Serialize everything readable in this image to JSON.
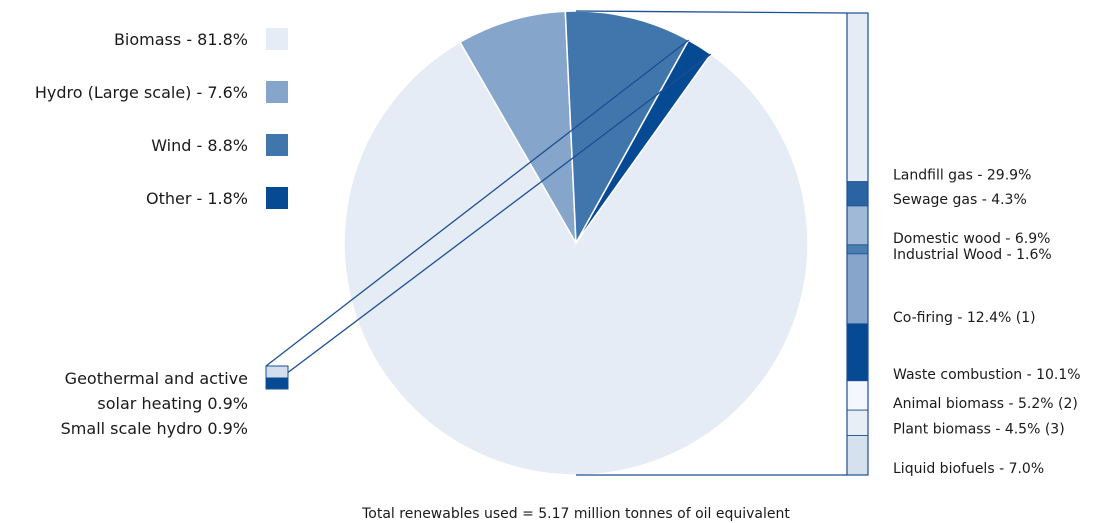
{
  "chart_data": {
    "type": "pie",
    "title": "",
    "footnote": "Total renewables used = 5.17 million tonnes of oil equivalent",
    "colors": {
      "biomass": "#e6ecf5",
      "hydro": "#85a6ca",
      "wind": "#4076ac",
      "other": "#064a94",
      "outline": "#1b4f94"
    },
    "slices": [
      {
        "label": "Biomass - 81.8%",
        "value": 81.8,
        "color": "#e6ecf5"
      },
      {
        "label": "Hydro (Large scale) - 7.6%",
        "value": 7.6,
        "color": "#85a6ca"
      },
      {
        "label": "Wind - 8.8%",
        "value": 8.8,
        "color": "#4076ac"
      },
      {
        "label": "Other - 1.8%",
        "value": 1.8,
        "color": "#064a94"
      }
    ],
    "other_breakdown": {
      "label_lines": [
        "Geothermal and active",
        "solar heating 0.9%",
        "Small scale hydro 0.9%"
      ],
      "items": [
        {
          "name": "Geothermal and active solar heating",
          "value": 0.9,
          "color": "#d3deed"
        },
        {
          "name": "Small scale hydro",
          "value": 0.9,
          "color": "#064a94"
        }
      ]
    },
    "biomass_breakdown": {
      "items": [
        {
          "label": "Landfill gas - 29.9%",
          "value": 29.9,
          "color": "#e6ecf5"
        },
        {
          "label": "Sewage gas - 4.3%",
          "value": 4.3,
          "color": "#2b64a3"
        },
        {
          "label": "Domestic wood - 6.9%",
          "value": 6.9,
          "color": "#9fb9d6"
        },
        {
          "label": "Industrial Wood - 1.6%",
          "value": 1.6,
          "color": "#4a7db2"
        },
        {
          "label": "Co-firing - 12.4% (1)",
          "value": 12.4,
          "color": "#85a6ca"
        },
        {
          "label": "Waste combustion - 10.1%",
          "value": 10.1,
          "color": "#064a94"
        },
        {
          "label": "Animal biomass - 5.2% (2)",
          "value": 5.2,
          "color": "#f4f7fb"
        },
        {
          "label": "Plant biomass - 4.5% (3)",
          "value": 4.5,
          "color": "#e8eef6"
        },
        {
          "label": "Liquid biofuels - 7.0%",
          "value": 7.0,
          "color": "#d6e1ee"
        }
      ]
    }
  }
}
